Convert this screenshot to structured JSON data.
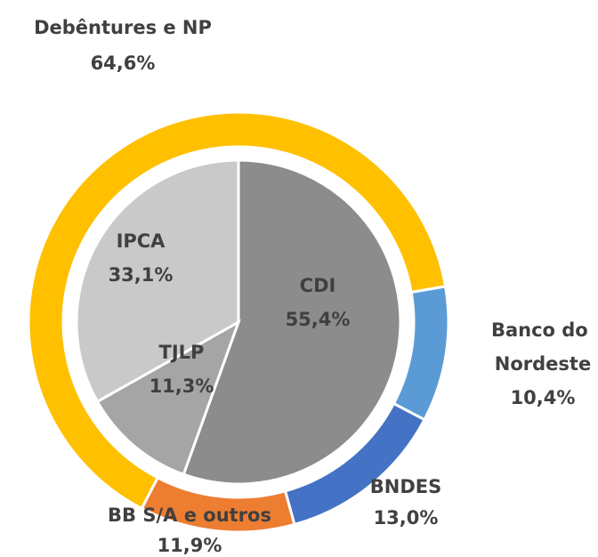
{
  "chart_data": [
    {
      "type": "donut",
      "categories": [
        "Debêntures e NP",
        "Banco do Nordeste",
        "BNDES",
        "BB S/A e outros"
      ],
      "values": [
        64.6,
        10.4,
        13.0,
        11.9
      ],
      "value_labels": [
        "64,6%",
        "10,4%",
        "13,0%",
        "11,9%"
      ],
      "colors": [
        "#FFC000",
        "#5B9BD5",
        "#4472C4",
        "#ED7D31"
      ]
    },
    {
      "type": "pie",
      "categories": [
        "CDI",
        "TJLP",
        "IPCA"
      ],
      "values": [
        55.4,
        11.3,
        33.1
      ],
      "value_labels": [
        "55,4%",
        "11,3%",
        "33,1%"
      ],
      "colors": [
        "#8C8C8C",
        "#A5A5A5",
        "#C9C9C9"
      ]
    }
  ]
}
